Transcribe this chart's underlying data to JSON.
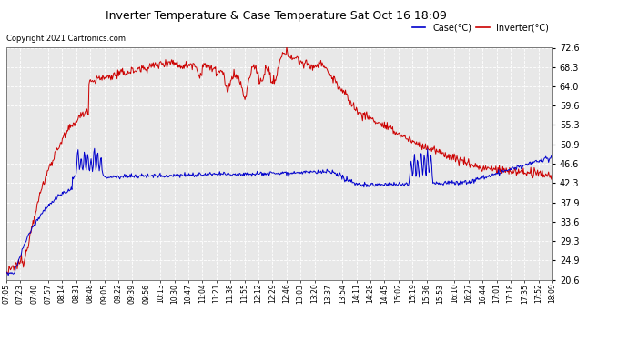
{
  "title": "Inverter Temperature & Case Temperature Sat Oct 16 18:09",
  "copyright": "Copyright 2021 Cartronics.com",
  "legend_case": "Case(°C)",
  "legend_inverter": "Inverter(°C)",
  "yticks": [
    20.6,
    24.9,
    29.3,
    33.6,
    37.9,
    42.3,
    46.6,
    50.9,
    55.3,
    59.6,
    64.0,
    68.3,
    72.6
  ],
  "ymin": 20.6,
  "ymax": 72.6,
  "background_color": "#ffffff",
  "plot_bg_color": "#e8e8e8",
  "grid_color": "#ffffff",
  "inverter_color": "#cc0000",
  "case_color": "#0000cc",
  "xtick_labels": [
    "07:05",
    "07:23",
    "07:40",
    "07:57",
    "08:14",
    "08:31",
    "08:48",
    "09:05",
    "09:22",
    "09:39",
    "09:56",
    "10:13",
    "10:30",
    "10:47",
    "11:04",
    "11:21",
    "11:38",
    "11:55",
    "12:12",
    "12:29",
    "12:46",
    "13:03",
    "13:20",
    "13:37",
    "13:54",
    "14:11",
    "14:28",
    "14:45",
    "15:02",
    "15:19",
    "15:36",
    "15:53",
    "16:10",
    "16:27",
    "16:44",
    "17:01",
    "17:18",
    "17:35",
    "17:52",
    "18:09"
  ]
}
